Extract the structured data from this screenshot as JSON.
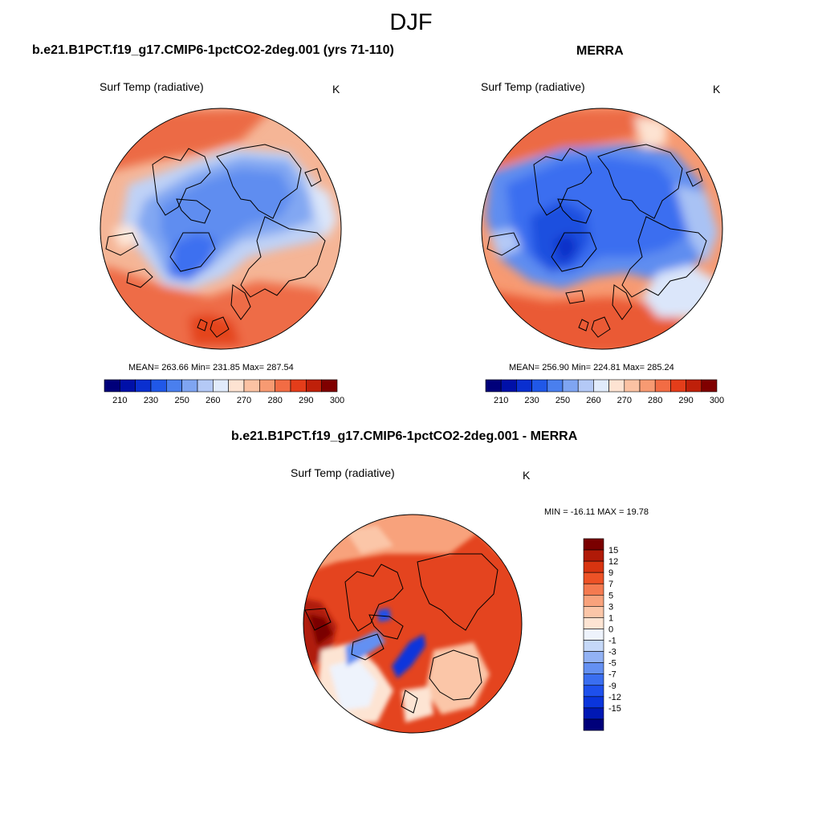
{
  "figure": {
    "title": "DJF"
  },
  "panels": {
    "model": {
      "title": "b.e21.B1PCT.f19_g17.CMIP6-1pctCO2-2deg.001 (yrs 71-110)",
      "variable": "Surf Temp (radiative)",
      "units": "K",
      "stats": "MEAN= 263.66  Min= 231.85  Max= 287.54"
    },
    "obs": {
      "title": "MERRA",
      "variable": "Surf Temp (radiative)",
      "units": "K",
      "stats": "MEAN= 256.90  Min= 224.81  Max= 285.24"
    },
    "diff": {
      "title": "b.e21.B1PCT.f19_g17.CMIP6-1pctCO2-2deg.001 - MERRA",
      "variable": "Surf Temp (radiative)",
      "units": "K",
      "stats": "MIN = -16.11 MAX =  19.78"
    }
  },
  "colorbars": {
    "absolute": {
      "colors": [
        "#00007a",
        "#0010a8",
        "#0a2fd0",
        "#2058e8",
        "#4a7fee",
        "#7fa5f2",
        "#b4c9f6",
        "#e1ebfb",
        "#fde3d2",
        "#fbc2a3",
        "#f79a72",
        "#f26c44",
        "#e43d1a",
        "#bf200a",
        "#800000"
      ],
      "tick_labels": [
        "210",
        "230",
        "250",
        "260",
        "270",
        "280",
        "290",
        "300"
      ],
      "tick_positions": [
        1,
        3,
        5,
        7,
        9,
        11,
        13,
        15
      ]
    },
    "difference": {
      "colors": [
        "#00007a",
        "#0018b4",
        "#0a35dc",
        "#1e50ec",
        "#3a6ef0",
        "#6490f2",
        "#92b2f4",
        "#c5d8f8",
        "#eef3fc",
        "#fde4d3",
        "#fbc6a8",
        "#f8a27c",
        "#f47a50",
        "#ed5226",
        "#d83410",
        "#b01a08",
        "#7a0000"
      ],
      "tick_labels": [
        "15",
        "12",
        "9",
        "7",
        "5",
        "3",
        "1",
        "0",
        "-1",
        "-3",
        "-5",
        "-7",
        "-9",
        "-12",
        "-15"
      ]
    }
  }
}
